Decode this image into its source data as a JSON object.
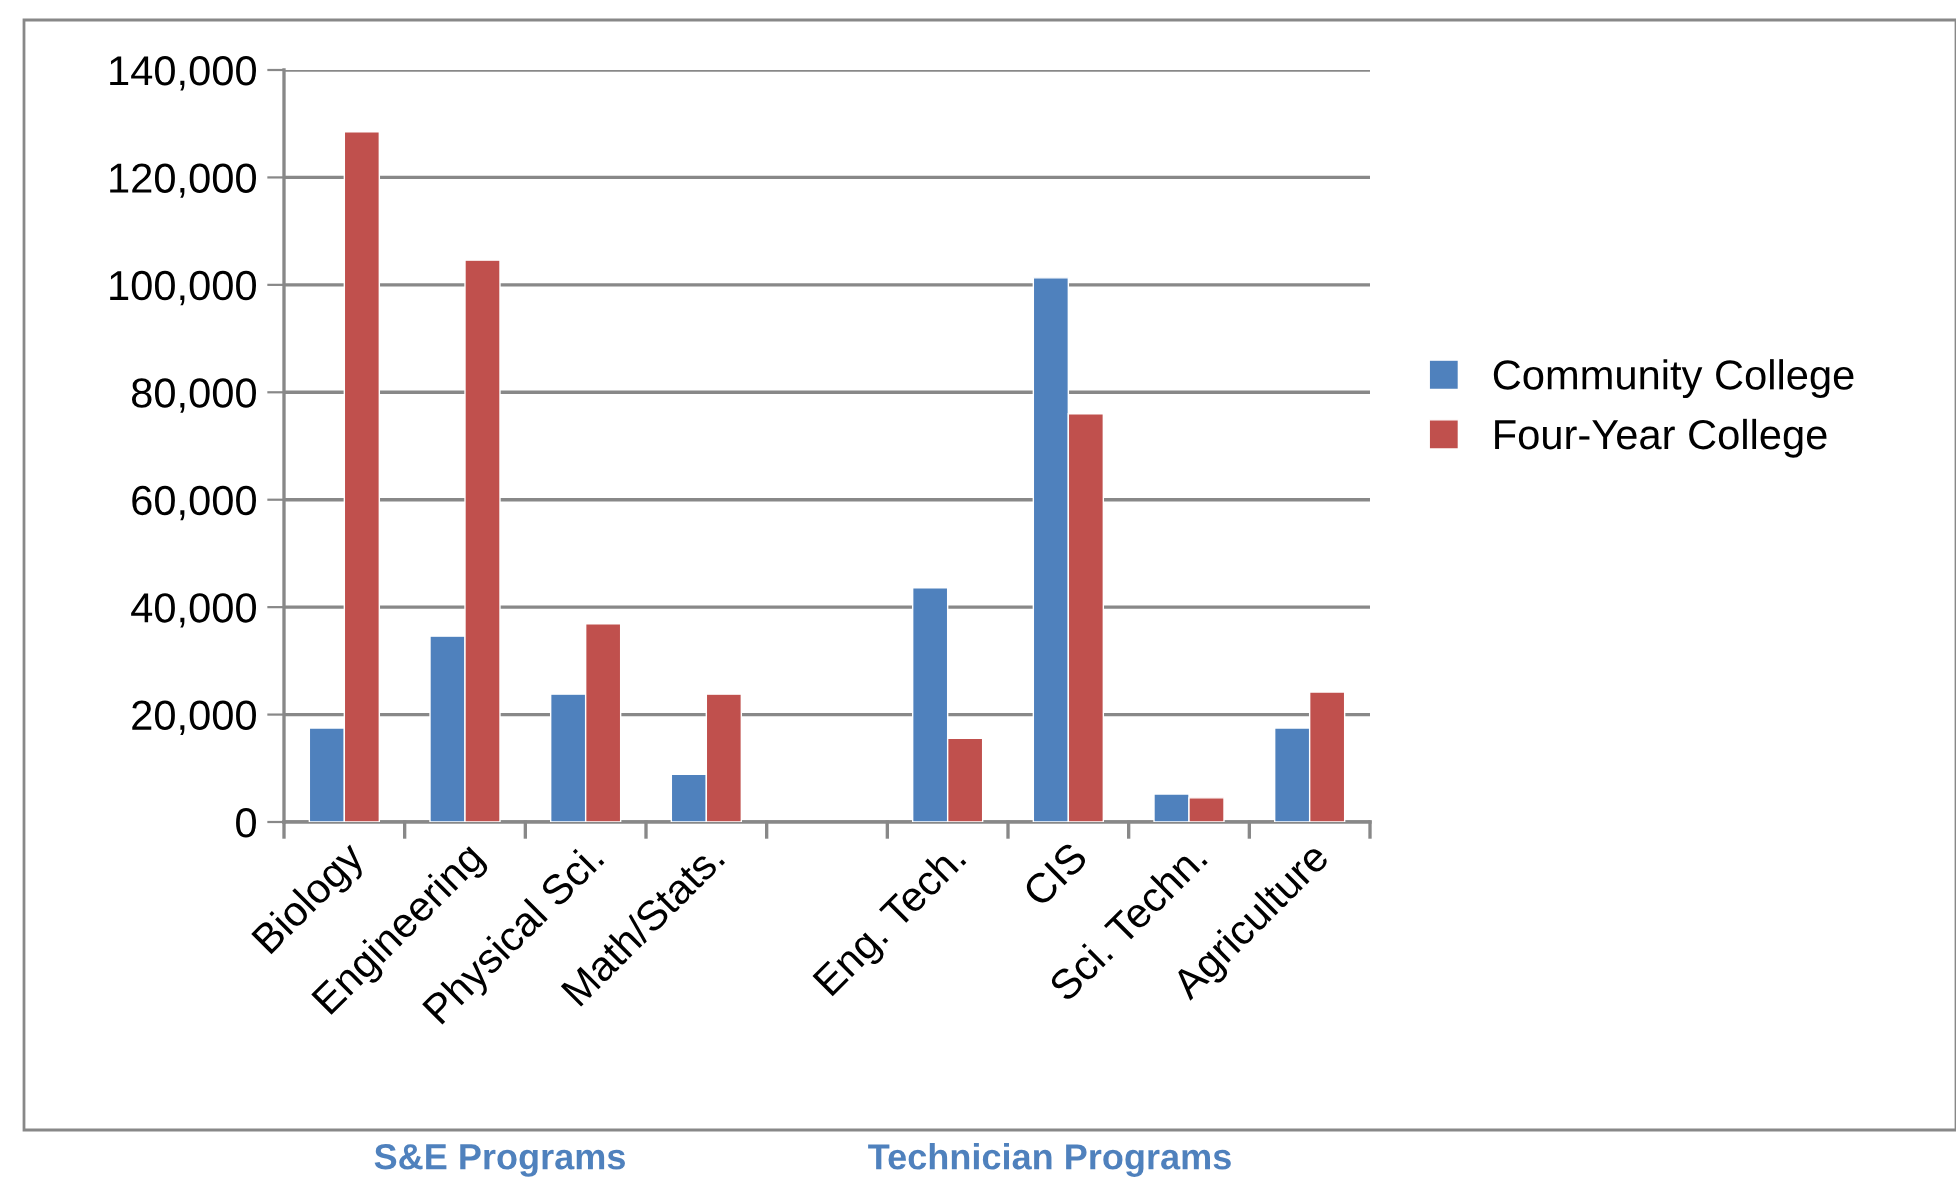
{
  "chart_data": {
    "type": "bar",
    "categories": [
      "Biology",
      "Engineering",
      "Physical Sci.",
      "Math/Stats.",
      null,
      "Eng. Tech.",
      "CIS",
      "Sci. Techn.",
      "Agriculture"
    ],
    "series": [
      {
        "name": "Community College",
        "color": "#4f81bd",
        "values": [
          17500,
          34600,
          23800,
          8900,
          null,
          43600,
          101300,
          5200,
          17500
        ]
      },
      {
        "name": "Four-Year College",
        "color": "#c0504d",
        "values": [
          128500,
          104600,
          36900,
          23800,
          null,
          15600,
          76000,
          4500,
          24200
        ]
      }
    ],
    "ylim": [
      0,
      140000
    ],
    "yticks": [
      {
        "value": 0,
        "label": "0"
      },
      {
        "value": 20000,
        "label": "20,000"
      },
      {
        "value": 40000,
        "label": "40,000"
      },
      {
        "value": 60000,
        "label": "60,000"
      },
      {
        "value": 80000,
        "label": "80,000"
      },
      {
        "value": 100000,
        "label": "100,000"
      },
      {
        "value": 120000,
        "label": "120,000"
      },
      {
        "value": 140000,
        "label": "140,000"
      }
    ],
    "grid": "y",
    "legend": "right",
    "annotations": [
      "S&E Programs",
      "Technician Programs"
    ]
  }
}
